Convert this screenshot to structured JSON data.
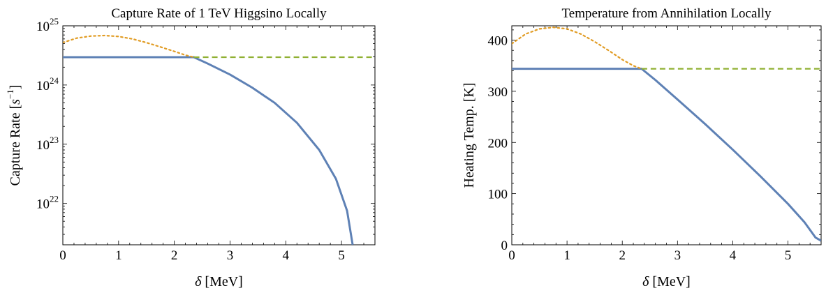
{
  "chart_data": [
    {
      "type": "line",
      "title": "Capture Rate of 1 TeV Higgsino Locally",
      "xlabel_symbol": "δ",
      "xlabel_unit": " [MeV]",
      "ylabel_text": "Capture Rate [",
      "ylabel_symbol": "s",
      "ylabel_exponent": "−1",
      "ylabel_close": "]",
      "y_scale": "log",
      "xlim": [
        0,
        5.6
      ],
      "ylim": [
        2e+21,
        1e+25
      ],
      "x_ticks": [
        {
          "value": 0,
          "label": "0"
        },
        {
          "value": 1,
          "label": "1"
        },
        {
          "value": 2,
          "label": "2"
        },
        {
          "value": 3,
          "label": "3"
        },
        {
          "value": 4,
          "label": "4"
        },
        {
          "value": 5,
          "label": "5"
        }
      ],
      "y_ticks": [
        {
          "value": 1e+22,
          "base": "10",
          "exp": "22"
        },
        {
          "value": 1e+23,
          "base": "10",
          "exp": "23"
        },
        {
          "value": 1e+24,
          "base": "10",
          "exp": "24"
        },
        {
          "value": 1e+25,
          "base": "10",
          "exp": "25"
        }
      ],
      "grid": false,
      "series": [
        {
          "style": "solid",
          "color": "#5e81b5",
          "x": [
            0,
            0.5,
            1.0,
            1.5,
            2.0,
            2.35,
            2.6,
            3.0,
            3.4,
            3.8,
            4.2,
            4.6,
            4.9,
            5.1,
            5.2
          ],
          "y": [
            2.95e+24,
            2.95e+24,
            2.95e+24,
            2.95e+24,
            2.95e+24,
            2.95e+24,
            2.3e+24,
            1.5e+24,
            9e+23,
            5e+23,
            2.3e+23,
            8e+22,
            2.6e+22,
            7.5e+21,
            2e+21
          ]
        },
        {
          "style": "dotted",
          "color": "#e19c24",
          "x": [
            0,
            0.25,
            0.5,
            0.75,
            1.0,
            1.25,
            1.5,
            1.75,
            2.0,
            2.2,
            2.35
          ],
          "y": [
            5.2e+24,
            6.2e+24,
            6.7e+24,
            6.85e+24,
            6.6e+24,
            6e+24,
            5.2e+24,
            4.4e+24,
            3.7e+24,
            3.2e+24,
            2.95e+24
          ]
        },
        {
          "style": "dashed",
          "color": "#8fb032",
          "x": [
            2.35,
            5.6
          ],
          "y": [
            2.95e+24,
            2.95e+24
          ]
        }
      ]
    },
    {
      "type": "line",
      "title": "Temperature from Annihilation Locally",
      "xlabel_symbol": "δ",
      "xlabel_unit": " [MeV]",
      "ylabel_text": "Heating Temp. [K]",
      "y_scale": "linear",
      "xlim": [
        0,
        5.6
      ],
      "ylim": [
        0,
        428
      ],
      "x_ticks": [
        {
          "value": 0,
          "label": "0"
        },
        {
          "value": 1,
          "label": "1"
        },
        {
          "value": 2,
          "label": "2"
        },
        {
          "value": 3,
          "label": "3"
        },
        {
          "value": 4,
          "label": "4"
        },
        {
          "value": 5,
          "label": "5"
        }
      ],
      "y_ticks": [
        {
          "value": 0,
          "label": "0"
        },
        {
          "value": 100,
          "label": "100"
        },
        {
          "value": 200,
          "label": "200"
        },
        {
          "value": 300,
          "label": "300"
        },
        {
          "value": 400,
          "label": "400"
        }
      ],
      "grid": false,
      "series": [
        {
          "style": "solid",
          "color": "#5e81b5",
          "x": [
            0,
            0.5,
            1.0,
            1.5,
            2.0,
            2.35,
            2.6,
            3.0,
            3.5,
            4.0,
            4.5,
            5.0,
            5.3,
            5.5,
            5.6
          ],
          "y": [
            344,
            344,
            344,
            344,
            344,
            344,
            322,
            284,
            236,
            186,
            134,
            80,
            44,
            14,
            8
          ]
        },
        {
          "style": "dotted",
          "color": "#e19c24",
          "x": [
            0,
            0.25,
            0.5,
            0.75,
            1.0,
            1.25,
            1.5,
            1.75,
            2.0,
            2.2,
            2.35
          ],
          "y": [
            393,
            412,
            422,
            425,
            422,
            412,
            397,
            380,
            362,
            350,
            344
          ]
        },
        {
          "style": "dashed",
          "color": "#8fb032",
          "x": [
            2.35,
            5.6
          ],
          "y": [
            344,
            344
          ]
        }
      ]
    }
  ]
}
